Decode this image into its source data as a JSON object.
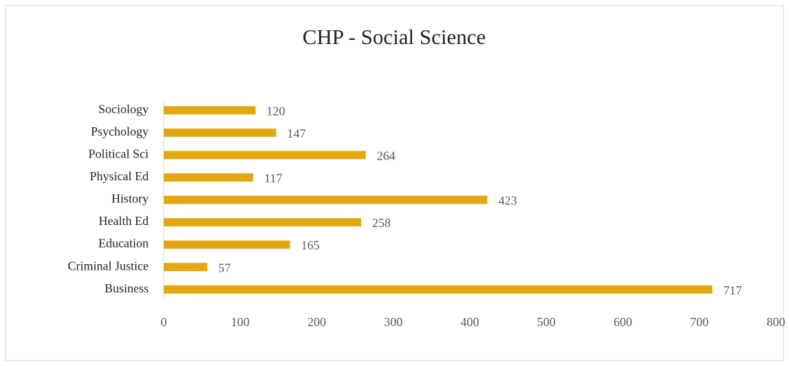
{
  "chart_data": {
    "type": "bar",
    "orientation": "horizontal",
    "title": "CHP - Social Science",
    "categories": [
      "Business",
      "Criminal Justice",
      "Education",
      "Health Ed",
      "History",
      "Physical Ed",
      "Political Sci",
      "Psychology",
      "Sociology"
    ],
    "values": [
      717,
      57,
      165,
      258,
      423,
      117,
      264,
      147,
      120
    ],
    "color": "#e2a810",
    "xlim": [
      0,
      800
    ],
    "xticks": [
      0,
      100,
      200,
      300,
      400,
      500,
      600,
      700,
      800
    ],
    "grid": false
  }
}
